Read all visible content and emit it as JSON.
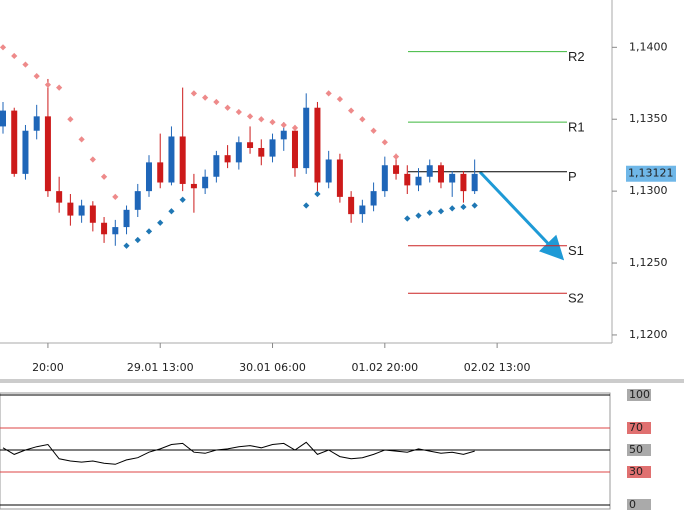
{
  "chart_data": [
    {
      "type": "candlestick",
      "categories": [
        null,
        null,
        null,
        null,
        "20:00",
        null,
        null,
        null,
        null,
        null,
        null,
        null,
        null,
        null,
        "29.01 13:00",
        null,
        null,
        null,
        null,
        null,
        null,
        null,
        null,
        null,
        "30.01 06:00",
        null,
        null,
        null,
        null,
        null,
        null,
        null,
        null,
        null,
        "01.02 20:00",
        null,
        null,
        null,
        null,
        null,
        null,
        null,
        null,
        null,
        "02.02 13:00"
      ],
      "open": [
        1.1345,
        1.1356,
        1.1312,
        1.1342,
        1.1352,
        1.13,
        1.1292,
        1.1283,
        1.129,
        1.1278,
        1.127,
        1.1275,
        1.1287,
        1.13,
        1.132,
        1.1306,
        1.1338,
        1.1305,
        1.1302,
        1.131,
        1.1325,
        1.132,
        1.1334,
        1.133,
        1.1324,
        1.1336,
        1.1342,
        1.1316,
        1.1358,
        1.1306,
        1.1322,
        1.1296,
        1.1284,
        1.129,
        1.13,
        1.1318,
        1.1312,
        1.1304,
        1.131,
        1.1318,
        1.1306,
        1.1312,
        1.13,
        null,
        null
      ],
      "high": [
        1.1362,
        1.1358,
        1.1346,
        1.136,
        1.1378,
        1.131,
        1.1298,
        1.1294,
        1.1293,
        1.1282,
        1.128,
        1.129,
        1.1305,
        1.1325,
        1.134,
        1.1345,
        1.1372,
        1.1312,
        1.1315,
        1.1328,
        1.1332,
        1.1338,
        1.1345,
        1.1336,
        1.134,
        1.1348,
        1.1346,
        1.1368,
        1.1362,
        1.1328,
        1.1326,
        1.13,
        1.1294,
        1.1306,
        1.1324,
        1.1326,
        1.1318,
        1.1316,
        1.1322,
        1.132,
        1.1314,
        1.1314,
        1.1322,
        null,
        null
      ],
      "low": [
        1.134,
        1.131,
        1.1308,
        1.1336,
        1.1296,
        1.1285,
        1.1276,
        1.1278,
        1.1272,
        1.1264,
        1.1262,
        1.127,
        1.1282,
        1.1296,
        1.1302,
        1.1304,
        1.13,
        1.1285,
        1.1298,
        1.1306,
        1.1316,
        1.1315,
        1.1326,
        1.1318,
        1.132,
        1.1328,
        1.131,
        1.1312,
        1.13,
        1.1302,
        1.1292,
        1.1278,
        1.1278,
        1.1286,
        1.1296,
        1.1308,
        1.1298,
        1.13,
        1.1306,
        1.1302,
        1.1296,
        1.1292,
        1.1298,
        null,
        null
      ],
      "close": [
        1.1356,
        1.1312,
        1.1342,
        1.1352,
        1.13,
        1.1292,
        1.1283,
        1.129,
        1.1278,
        1.127,
        1.1275,
        1.1287,
        1.13,
        1.132,
        1.1306,
        1.1338,
        1.1305,
        1.1302,
        1.131,
        1.1325,
        1.132,
        1.1334,
        1.133,
        1.1324,
        1.1336,
        1.1342,
        1.1316,
        1.1358,
        1.1306,
        1.1322,
        1.1296,
        1.1284,
        1.129,
        1.13,
        1.1318,
        1.1312,
        1.1304,
        1.131,
        1.1318,
        1.1306,
        1.1312,
        1.13,
        1.1312,
        null,
        null
      ],
      "sar": [
        1.14,
        1.1394,
        1.1388,
        1.138,
        1.1374,
        1.1372,
        1.135,
        1.1336,
        1.1322,
        1.131,
        1.1296,
        1.1262,
        1.1266,
        1.1272,
        1.1278,
        1.1286,
        1.1294,
        1.1368,
        1.1365,
        1.1362,
        1.1358,
        1.1355,
        1.1352,
        1.135,
        1.1348,
        1.1346,
        1.1344,
        1.129,
        1.1298,
        1.1368,
        1.1364,
        1.1356,
        1.135,
        1.1342,
        1.1334,
        1.1324,
        1.1281,
        1.1283,
        1.1285,
        1.1286,
        1.1288,
        1.1289,
        1.129,
        null,
        null
      ],
      "up_color": "#1f66b8",
      "down_color": "#cc1a1a",
      "sar_above_color": "#ee8a8a",
      "sar_below_color": "#1f77b4",
      "ylim": [
        1.11944,
        1.14329
      ],
      "yticks": [
        {
          "value": 1.14,
          "label": "1,1400"
        },
        {
          "value": 1.135,
          "label": "1,1350"
        },
        {
          "value": 1.13,
          "label": "1,1300"
        },
        {
          "value": 1.125,
          "label": "1,1250"
        },
        {
          "value": 1.12,
          "label": "1,1200"
        }
      ],
      "current_price": {
        "value": 1.13121,
        "label": "1,13121"
      },
      "levels": [
        {
          "name": "R2",
          "value": 1.1397,
          "color": "#3cb83c"
        },
        {
          "name": "R1",
          "value": 1.1348,
          "color": "#3cb83c"
        },
        {
          "name": "P",
          "value": 1.13135,
          "color": "#000000"
        },
        {
          "name": "S1",
          "value": 1.1262,
          "color": "#cc2222"
        },
        {
          "name": "S2",
          "value": 1.1229,
          "color": "#cc2222"
        }
      ]
    },
    {
      "type": "line",
      "values": [
        52,
        46,
        50,
        53,
        55,
        42,
        40,
        39,
        40,
        38,
        37,
        41,
        43,
        48,
        51,
        55,
        56,
        48,
        47,
        50,
        51,
        53,
        54,
        52,
        55,
        56,
        50,
        57,
        46,
        50,
        44,
        42,
        43,
        46,
        50,
        49,
        48,
        51,
        49,
        47,
        48,
        46,
        49,
        null,
        null
      ],
      "color": "#000000",
      "ylim": [
        0,
        100
      ],
      "yticks": [
        100,
        70,
        50,
        30,
        0
      ],
      "tick_colors": [
        "#000000",
        "#dd4444",
        "#000000",
        "#dd4444",
        "#000000"
      ],
      "tick_label_bg": [
        "#aaaaaa",
        "#e07070",
        "#aaaaaa",
        "#e07070",
        "#aaaaaa"
      ]
    }
  ]
}
